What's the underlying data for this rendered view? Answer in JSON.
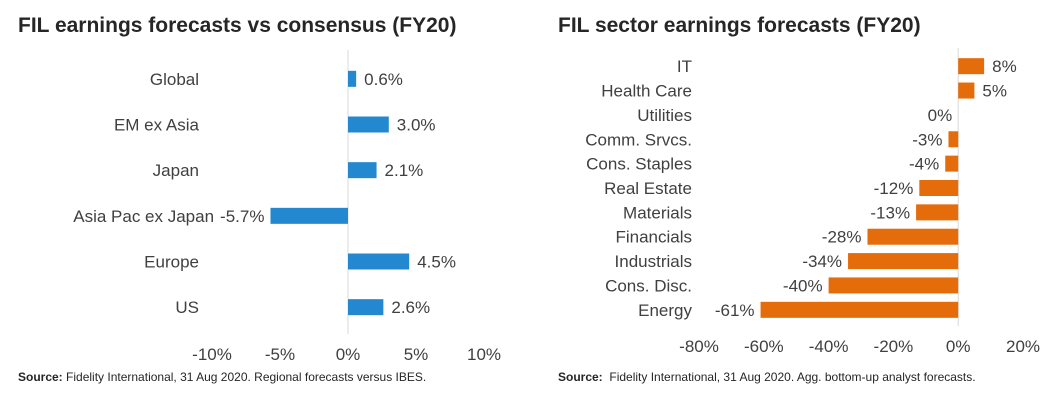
{
  "chart_data": [
    {
      "type": "bar",
      "orientation": "horizontal",
      "title": "FIL earnings forecasts vs consensus (FY20)",
      "categories": [
        "Global",
        "EM ex Asia",
        "Japan",
        "Asia Pac ex Japan",
        "Europe",
        "US"
      ],
      "values": [
        0.6,
        3.0,
        2.1,
        -5.7,
        4.5,
        2.6
      ],
      "value_labels": [
        "0.6%",
        "3.0%",
        "2.1%",
        "-5.7%",
        "4.5%",
        "2.6%"
      ],
      "xlim": [
        -10,
        10
      ],
      "xticks": [
        -10,
        -5,
        0,
        5,
        10
      ],
      "xtick_labels": [
        "-10%",
        "-5%",
        "0%",
        "5%",
        "10%"
      ],
      "bar_color": "#2388cf",
      "grid": false,
      "source_label": "Source:",
      "source_text": "Fidelity International, 31 Aug 2020. Regional forecasts versus IBES."
    },
    {
      "type": "bar",
      "orientation": "horizontal",
      "title": "FIL sector earnings forecasts (FY20)",
      "categories": [
        "IT",
        "Health Care",
        "Utilities",
        "Comm. Srvcs.",
        "Cons. Staples",
        "Real Estate",
        "Materials",
        "Financials",
        "Industrials",
        "Cons. Disc.",
        "Energy"
      ],
      "values": [
        8,
        5,
        0,
        -3,
        -4,
        -12,
        -13,
        -28,
        -34,
        -40,
        -61
      ],
      "value_labels": [
        "8%",
        "5%",
        "0%",
        "-3%",
        "-4%",
        "-12%",
        "-13%",
        "-28%",
        "-34%",
        "-40%",
        "-61%"
      ],
      "xlim": [
        -80,
        20
      ],
      "xticks": [
        -80,
        -60,
        -40,
        -20,
        0,
        20
      ],
      "xtick_labels": [
        "-80%",
        "-60%",
        "-40%",
        "-20%",
        "0%",
        "20%"
      ],
      "bar_color": "#e46c0a",
      "grid": false,
      "source_label": "Source:",
      "source_text": "Fidelity International, 31 Aug 2020. Agg. bottom-up analyst forecasts."
    }
  ]
}
